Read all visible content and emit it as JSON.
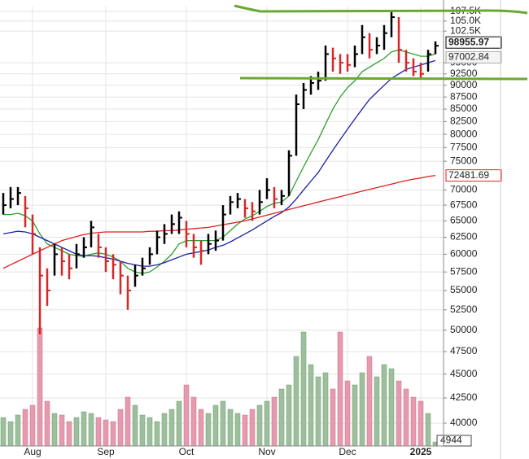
{
  "chart_data": {
    "type": "stock",
    "categories": [
      null,
      null,
      null,
      null,
      "Aug",
      null,
      null,
      null,
      null,
      null,
      null,
      null,
      null,
      null,
      "Sep",
      null,
      null,
      null,
      null,
      null,
      null,
      null,
      null,
      null,
      null,
      "Oct",
      null,
      null,
      null,
      null,
      null,
      null,
      null,
      null,
      null,
      null,
      "Nov",
      null,
      null,
      null,
      null,
      null,
      null,
      null,
      null,
      null,
      null,
      "Dec",
      null,
      null,
      null,
      null,
      null,
      null,
      null,
      null,
      null,
      "2025",
      null,
      null
    ],
    "price": {
      "high": [
        69500,
        70500,
        70500,
        69000,
        66000,
        61000,
        58000,
        61500,
        61000,
        60000,
        61500,
        62500,
        65000,
        63000,
        61000,
        60000,
        59000,
        57000,
        58500,
        59500,
        61000,
        63500,
        64500,
        66000,
        66500,
        65000,
        63000,
        62000,
        63000,
        63500,
        67500,
        69000,
        69500,
        68500,
        68000,
        70000,
        72000,
        70500,
        70000,
        77000,
        88000,
        90500,
        92000,
        93000,
        99000,
        98500,
        97000,
        97000,
        99000,
        104000,
        102000,
        101000,
        104000,
        107500,
        106000,
        98000,
        96000,
        95000,
        98000,
        100000
      ],
      "low": [
        66000,
        67000,
        67500,
        64000,
        60000,
        49500,
        53000,
        57000,
        57000,
        56500,
        58000,
        59500,
        61000,
        59500,
        57500,
        56500,
        54500,
        52500,
        55500,
        57000,
        58500,
        60000,
        61500,
        63000,
        63000,
        61000,
        59500,
        58500,
        60000,
        60500,
        62000,
        66000,
        67000,
        65500,
        65000,
        66000,
        68500,
        67000,
        67500,
        69000,
        76000,
        85000,
        88000,
        89000,
        91000,
        93000,
        92500,
        93000,
        94000,
        97000,
        96000,
        97000,
        98000,
        101000,
        95000,
        93000,
        92000,
        91500,
        93000,
        97000
      ],
      "close": [
        67500,
        68500,
        69500,
        67000,
        63000,
        57000,
        55000,
        60000,
        59000,
        58000,
        60000,
        61000,
        64000,
        61000,
        59000,
        58500,
        57000,
        55000,
        57000,
        58000,
        60000,
        62500,
        63000,
        64500,
        65500,
        63000,
        61000,
        60500,
        61500,
        62000,
        66000,
        68000,
        68500,
        67000,
        66500,
        68000,
        70000,
        68500,
        69000,
        76000,
        86000,
        89000,
        90500,
        91000,
        97000,
        96000,
        95000,
        94500,
        97000,
        101000,
        98000,
        99000,
        102000,
        106000,
        98000,
        95000,
        93000,
        92500,
        97000,
        98955.97
      ],
      "up_color": "#000000",
      "down_color": "#d62728"
    },
    "series": [
      {
        "color": "#2ca02c",
        "values": [
          66000,
          66000,
          66200,
          65800,
          65000,
          63000,
          61500,
          61000,
          60500,
          60000,
          59800,
          59700,
          60000,
          60200,
          60000,
          59600,
          59000,
          58000,
          57500,
          57300,
          57500,
          58200,
          59000,
          60000,
          61500,
          62000,
          62000,
          62000,
          62000,
          62000,
          62500,
          63500,
          64500,
          65300,
          65800,
          66500,
          67300,
          67800,
          68000,
          69000,
          71500,
          74000,
          76500,
          79000,
          82000,
          85000,
          87500,
          89500,
          91000,
          93000,
          94000,
          95000,
          96000,
          97500,
          98000,
          97500,
          97000,
          96500,
          96500,
          97002.84
        ]
      },
      {
        "color": "#1f1fa8",
        "values": [
          63000,
          63200,
          63400,
          63300,
          63000,
          62500,
          62000,
          61500,
          61000,
          60500,
          60000,
          59800,
          59800,
          59700,
          59500,
          59300,
          59000,
          58700,
          58500,
          58300,
          58300,
          58500,
          58800,
          59200,
          59600,
          60000,
          60200,
          60400,
          60600,
          61000,
          61300,
          61800,
          62400,
          63000,
          63600,
          64300,
          65000,
          65700,
          66300,
          67200,
          68500,
          70000,
          71500,
          73000,
          75000,
          77000,
          79000,
          81000,
          83000,
          85000,
          87000,
          88500,
          90000,
          91500,
          92500,
          93500,
          94000,
          94500,
          95000,
          95500
        ]
      },
      {
        "color": "#e02020",
        "values": [
          58000,
          58500,
          59000,
          59500,
          60000,
          60500,
          61000,
          61500,
          62000,
          62300,
          62600,
          62900,
          63100,
          63200,
          63300,
          63300,
          63300,
          63300,
          63300,
          63300,
          63400,
          63400,
          63500,
          63500,
          63600,
          63700,
          63800,
          63900,
          64000,
          64200,
          64400,
          64600,
          64800,
          65000,
          65300,
          65600,
          65900,
          66200,
          66500,
          66800,
          67100,
          67400,
          67700,
          68000,
          68300,
          68600,
          68900,
          69200,
          69500,
          69800,
          70100,
          70400,
          70700,
          71000,
          71300,
          71600,
          71850,
          72050,
          72300,
          72481.69
        ]
      }
    ],
    "volume": {
      "axis": "y2",
      "up_color": "#9dbf9d",
      "down_color": "#e59aae",
      "values": [
        35000,
        30000,
        38000,
        45000,
        50000,
        145000,
        55000,
        40000,
        38000,
        30000,
        35000,
        42000,
        40000,
        35000,
        32000,
        30000,
        45000,
        60000,
        50000,
        38000,
        35000,
        30000,
        40000,
        45000,
        55000,
        75000,
        60000,
        45000,
        40000,
        50000,
        55000,
        45000,
        40000,
        38000,
        45000,
        50000,
        55000,
        60000,
        70000,
        75000,
        110000,
        140000,
        100000,
        85000,
        90000,
        70000,
        140000,
        80000,
        75000,
        90000,
        110000,
        85000,
        100000,
        95000,
        80000,
        70000,
        60000,
        55000,
        40000,
        4944
      ]
    },
    "ylim": [
      37870,
      108730
    ],
    "log_scale": true,
    "y2lim": [
      0,
      150000
    ],
    "yticks": [
      40000,
      42500,
      45000,
      47500,
      50000,
      52500,
      55000,
      57500,
      60000,
      62500,
      65000,
      67500,
      70000,
      75000,
      77500,
      80000,
      82500,
      85000,
      87500,
      90000,
      92500,
      95000,
      {
        "value": 102500,
        "label": "102.5K"
      },
      {
        "value": 105000,
        "label": "105.0K"
      },
      {
        "value": 107500,
        "label": "107.5K"
      }
    ],
    "grid": true
  }
}
